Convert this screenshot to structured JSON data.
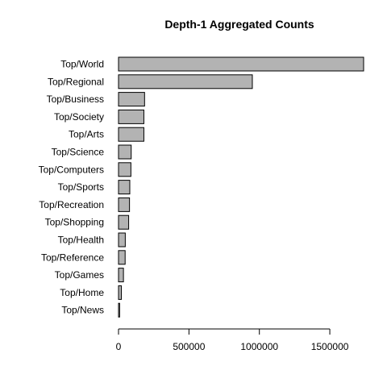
{
  "chart_data": {
    "type": "bar",
    "orientation": "horizontal",
    "title": "Depth-1 Aggregated Counts",
    "xlabel": "",
    "ylabel": "",
    "categories": [
      "Top/World",
      "Top/Regional",
      "Top/Business",
      "Top/Society",
      "Top/Arts",
      "Top/Science",
      "Top/Computers",
      "Top/Sports",
      "Top/Recreation",
      "Top/Shopping",
      "Top/Health",
      "Top/Reference",
      "Top/Games",
      "Top/Home",
      "Top/News"
    ],
    "values": [
      1740000,
      950000,
      185000,
      180000,
      180000,
      90000,
      88000,
      80000,
      78000,
      72000,
      48000,
      47000,
      35000,
      20000,
      8000
    ],
    "xlim": [
      0,
      1740000
    ],
    "xticks": [
      0,
      500000,
      1000000,
      1500000
    ],
    "xtick_labels": [
      "0",
      "500000",
      "1000000",
      "1500000"
    ],
    "grid": false,
    "bar_color": "#b3b3b3",
    "bar_edge_color": "#000000"
  }
}
